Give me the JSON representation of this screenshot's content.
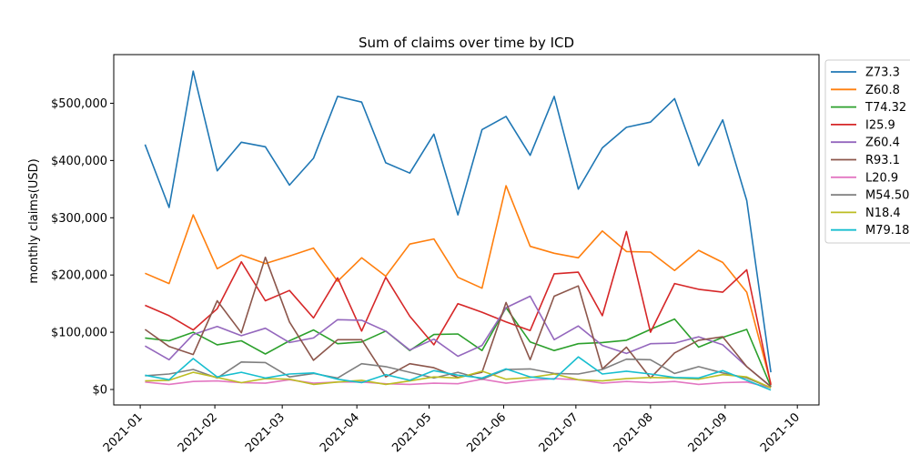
{
  "chart_data": {
    "type": "line",
    "title": "Sum of claims over time by ICD",
    "xlabel": "",
    "ylabel": "monthly claims(USD)",
    "x_ticks": [
      "2021-01",
      "2021-02",
      "2021-03",
      "2021-04",
      "2021-05",
      "2021-06",
      "2021-07",
      "2021-08",
      "2021-09",
      "2021-10"
    ],
    "y_ticks": [
      "$0",
      "$100,000",
      "$200,000",
      "$300,000",
      "$400,000",
      "$500,000"
    ],
    "y_tick_values": [
      0,
      100000,
      200000,
      300000,
      400000,
      500000
    ],
    "xlim": [
      "2020-12-21",
      "2021-10-10"
    ],
    "ylim": [
      -27000,
      585000
    ],
    "grid": false,
    "legend_position": "upper right, outside plot",
    "x": [
      "2021-01-03",
      "2021-01-13",
      "2021-01-23",
      "2021-02-02",
      "2021-02-12",
      "2021-02-22",
      "2021-03-04",
      "2021-03-14",
      "2021-03-24",
      "2021-04-03",
      "2021-04-13",
      "2021-04-23",
      "2021-05-03",
      "2021-05-13",
      "2021-05-23",
      "2021-06-02",
      "2021-06-12",
      "2021-06-22",
      "2021-07-02",
      "2021-07-12",
      "2021-07-22",
      "2021-08-01",
      "2021-08-11",
      "2021-08-21",
      "2021-08-31",
      "2021-09-10",
      "2021-09-20"
    ],
    "series": [
      {
        "name": "Z73.3",
        "color": "#1f77b4",
        "values": [
          428000,
          318000,
          556000,
          382000,
          432000,
          424000,
          357000,
          404000,
          512000,
          502000,
          396000,
          378000,
          446000,
          305000,
          454000,
          477000,
          409000,
          512000,
          350000,
          422000,
          458000,
          467000,
          508000,
          391000,
          471000,
          330000,
          30000
        ]
      },
      {
        "name": "Z60.8",
        "color": "#ff7f0e",
        "values": [
          203000,
          185000,
          305000,
          211000,
          235000,
          220000,
          233000,
          247000,
          189000,
          230000,
          198000,
          254000,
          263000,
          196000,
          177000,
          356000,
          250000,
          238000,
          230000,
          277000,
          241000,
          240000,
          208000,
          243000,
          222000,
          170000,
          10000
        ]
      },
      {
        "name": "T74.32",
        "color": "#2ca02c",
        "values": [
          90000,
          85000,
          100000,
          78000,
          85000,
          62000,
          85000,
          104000,
          80000,
          83000,
          102000,
          68000,
          96000,
          97000,
          68000,
          143000,
          83000,
          68000,
          80000,
          82000,
          86000,
          105000,
          123000,
          74000,
          91000,
          105000,
          5000
        ]
      },
      {
        "name": "I25.9",
        "color": "#d62728",
        "values": [
          147000,
          129000,
          104000,
          141000,
          223000,
          155000,
          173000,
          125000,
          195000,
          102000,
          196000,
          128000,
          78000,
          150000,
          135000,
          118000,
          103000,
          202000,
          205000,
          129000,
          276000,
          100000,
          185000,
          175000,
          170000,
          209000,
          8000
        ]
      },
      {
        "name": "Z60.4",
        "color": "#9467bd",
        "values": [
          76000,
          52000,
          96000,
          110000,
          94000,
          107000,
          82000,
          90000,
          122000,
          121000,
          102000,
          69000,
          88000,
          58000,
          77000,
          143000,
          163000,
          87000,
          111000,
          77000,
          63000,
          80000,
          81000,
          92000,
          78000,
          40000,
          5000
        ]
      },
      {
        "name": "R93.1",
        "color": "#8c564b",
        "values": [
          105000,
          75000,
          61000,
          155000,
          99000,
          231000,
          118000,
          51000,
          87000,
          87000,
          22000,
          45000,
          38000,
          21000,
          30000,
          152000,
          52000,
          163000,
          181000,
          36000,
          74000,
          20000,
          64000,
          86000,
          92000,
          40000,
          5000
        ]
      },
      {
        "name": "L20.9",
        "color": "#e377c2",
        "values": [
          13000,
          9000,
          14000,
          15000,
          12000,
          11000,
          17000,
          11000,
          13000,
          13000,
          10000,
          9000,
          11000,
          10000,
          18000,
          11000,
          16000,
          19000,
          17000,
          11000,
          14000,
          12000,
          14000,
          9000,
          12000,
          13000,
          3000
        ]
      },
      {
        "name": "M54.50",
        "color": "#7f7f7f",
        "values": [
          24000,
          27000,
          35000,
          20000,
          48000,
          47000,
          22000,
          28000,
          20000,
          45000,
          40000,
          30000,
          20000,
          30000,
          18000,
          35000,
          36000,
          28000,
          27000,
          35000,
          53000,
          52000,
          28000,
          40000,
          29000,
          20000,
          3000
        ]
      },
      {
        "name": "N18.4",
        "color": "#bcbd22",
        "values": [
          15000,
          16000,
          30000,
          21000,
          12000,
          19000,
          18000,
          9000,
          13000,
          16000,
          9000,
          15000,
          22000,
          20000,
          32000,
          18000,
          21000,
          27000,
          17000,
          15000,
          19000,
          21000,
          20000,
          18000,
          26000,
          22000,
          3000
        ]
      },
      {
        "name": "M79.18",
        "color": "#17becf",
        "values": [
          25000,
          17000,
          54000,
          22000,
          30000,
          20000,
          27000,
          29000,
          18000,
          12000,
          26000,
          16000,
          33000,
          25000,
          20000,
          36000,
          22000,
          18000,
          57000,
          27000,
          32000,
          27000,
          21000,
          20000,
          33000,
          16000,
          -1000
        ]
      }
    ]
  }
}
